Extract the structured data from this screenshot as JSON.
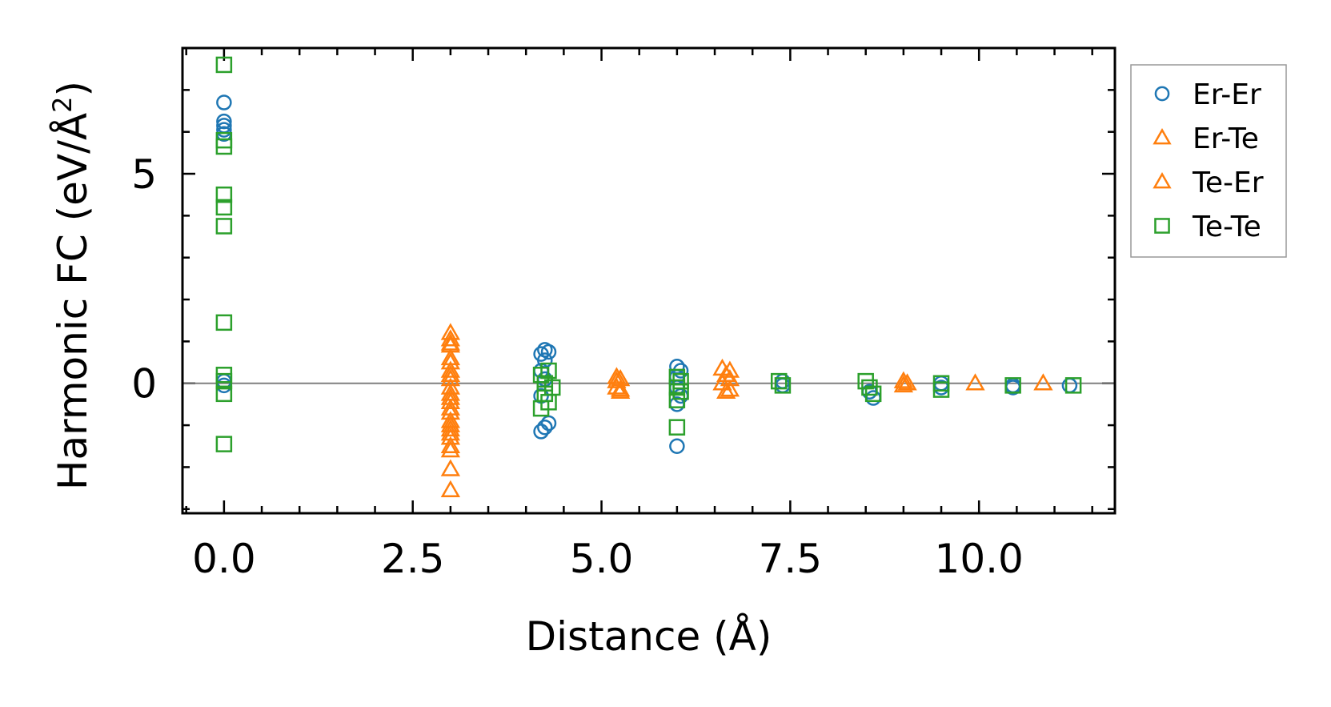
{
  "chart_data": {
    "type": "scatter",
    "xlabel": "Distance (Å)",
    "ylabel": "Harmonic FC (eV/Å",
    "ylabel_sup": "2",
    "ylabel_close": ")",
    "xlim": [
      -0.55,
      11.8
    ],
    "ylim": [
      -3.1,
      8.0
    ],
    "xticks": [
      0.0,
      2.5,
      5.0,
      7.5,
      10.0
    ],
    "xtick_labels": [
      "0.0",
      "2.5",
      "5.0",
      "7.5",
      "10.0"
    ],
    "yticks": [
      0,
      5
    ],
    "ytick_labels": [
      "0",
      "5"
    ],
    "zero_line": true,
    "grid": false,
    "legend_position": "outside-right",
    "series": [
      {
        "name": "Er-Er",
        "marker": "circle",
        "color": "#1f77b4",
        "points": [
          [
            0.0,
            6.7
          ],
          [
            0.0,
            6.25
          ],
          [
            0.0,
            6.15
          ],
          [
            0.0,
            6.05
          ],
          [
            0.0,
            5.95
          ],
          [
            0.0,
            0.05
          ],
          [
            0.0,
            -0.05
          ],
          [
            4.2,
            0.7
          ],
          [
            4.25,
            0.8
          ],
          [
            4.3,
            0.75
          ],
          [
            4.25,
            0.55
          ],
          [
            4.2,
            0.3
          ],
          [
            4.25,
            0.1
          ],
          [
            4.2,
            -0.3
          ],
          [
            4.3,
            -0.95
          ],
          [
            4.25,
            -1.05
          ],
          [
            4.2,
            -1.15
          ],
          [
            6.0,
            0.4
          ],
          [
            6.05,
            0.3
          ],
          [
            6.0,
            0.15
          ],
          [
            6.0,
            -0.1
          ],
          [
            6.05,
            -0.3
          ],
          [
            6.0,
            -0.5
          ],
          [
            6.0,
            -1.5
          ],
          [
            7.4,
            0.05
          ],
          [
            7.4,
            -0.05
          ],
          [
            8.55,
            -0.2
          ],
          [
            8.6,
            -0.35
          ],
          [
            9.5,
            0.0
          ],
          [
            9.5,
            -0.1
          ],
          [
            10.45,
            -0.05
          ],
          [
            10.45,
            -0.1
          ],
          [
            11.2,
            -0.05
          ]
        ]
      },
      {
        "name": "Er-Te",
        "marker": "triangle",
        "color": "#ff7f0e",
        "points": [
          [
            3.0,
            1.2
          ],
          [
            3.0,
            1.05
          ],
          [
            3.0,
            0.9
          ],
          [
            3.0,
            0.5
          ],
          [
            3.0,
            0.3
          ],
          [
            3.0,
            0.1
          ],
          [
            3.0,
            -0.1
          ],
          [
            3.0,
            -0.25
          ],
          [
            3.0,
            -0.45
          ],
          [
            3.0,
            -0.7
          ],
          [
            3.0,
            -0.9
          ],
          [
            3.0,
            -1.1
          ],
          [
            3.0,
            -1.3
          ],
          [
            3.0,
            -1.5
          ],
          [
            5.2,
            0.15
          ],
          [
            5.2,
            0.05
          ],
          [
            5.2,
            -0.1
          ],
          [
            5.25,
            -0.2
          ],
          [
            6.6,
            0.35
          ],
          [
            6.65,
            0.2
          ],
          [
            6.6,
            0.0
          ],
          [
            6.65,
            -0.2
          ],
          [
            9.0,
            0.05
          ],
          [
            9.0,
            -0.05
          ],
          [
            9.95,
            0.0
          ]
        ]
      },
      {
        "name": "Te-Er",
        "marker": "triangle",
        "color": "#ff7f0e",
        "points": [
          [
            3.0,
            0.95
          ],
          [
            3.0,
            0.6
          ],
          [
            3.0,
            0.2
          ],
          [
            3.0,
            -0.35
          ],
          [
            3.0,
            -0.6
          ],
          [
            3.0,
            -1.0
          ],
          [
            3.0,
            -1.2
          ],
          [
            3.0,
            -1.6
          ],
          [
            3.0,
            -2.05
          ],
          [
            3.0,
            -2.55
          ],
          [
            5.25,
            0.1
          ],
          [
            5.25,
            -0.15
          ],
          [
            6.7,
            0.3
          ],
          [
            6.7,
            0.1
          ],
          [
            6.7,
            -0.15
          ],
          [
            9.05,
            0.0
          ],
          [
            10.85,
            0.0
          ]
        ]
      },
      {
        "name": "Te-Te",
        "marker": "square",
        "color": "#2ca02c",
        "points": [
          [
            0.0,
            7.6
          ],
          [
            0.0,
            5.8
          ],
          [
            0.0,
            5.65
          ],
          [
            0.0,
            4.5
          ],
          [
            0.0,
            4.2
          ],
          [
            0.0,
            3.75
          ],
          [
            0.0,
            1.45
          ],
          [
            0.0,
            0.2
          ],
          [
            0.0,
            0.05
          ],
          [
            0.0,
            -0.25
          ],
          [
            0.0,
            -1.45
          ],
          [
            4.2,
            0.2
          ],
          [
            4.3,
            0.3
          ],
          [
            4.25,
            0.0
          ],
          [
            4.35,
            -0.1
          ],
          [
            4.25,
            -0.25
          ],
          [
            4.3,
            -0.45
          ],
          [
            4.2,
            -0.6
          ],
          [
            6.0,
            0.15
          ],
          [
            6.05,
            0.05
          ],
          [
            6.0,
            -0.1
          ],
          [
            6.05,
            -0.2
          ],
          [
            6.0,
            -0.4
          ],
          [
            6.0,
            -1.05
          ],
          [
            7.35,
            0.05
          ],
          [
            7.4,
            -0.05
          ],
          [
            8.5,
            0.05
          ],
          [
            8.55,
            -0.1
          ],
          [
            8.6,
            -0.25
          ],
          [
            9.5,
            0.0
          ],
          [
            9.5,
            -0.15
          ],
          [
            10.45,
            -0.05
          ],
          [
            11.25,
            -0.05
          ]
        ]
      }
    ]
  }
}
